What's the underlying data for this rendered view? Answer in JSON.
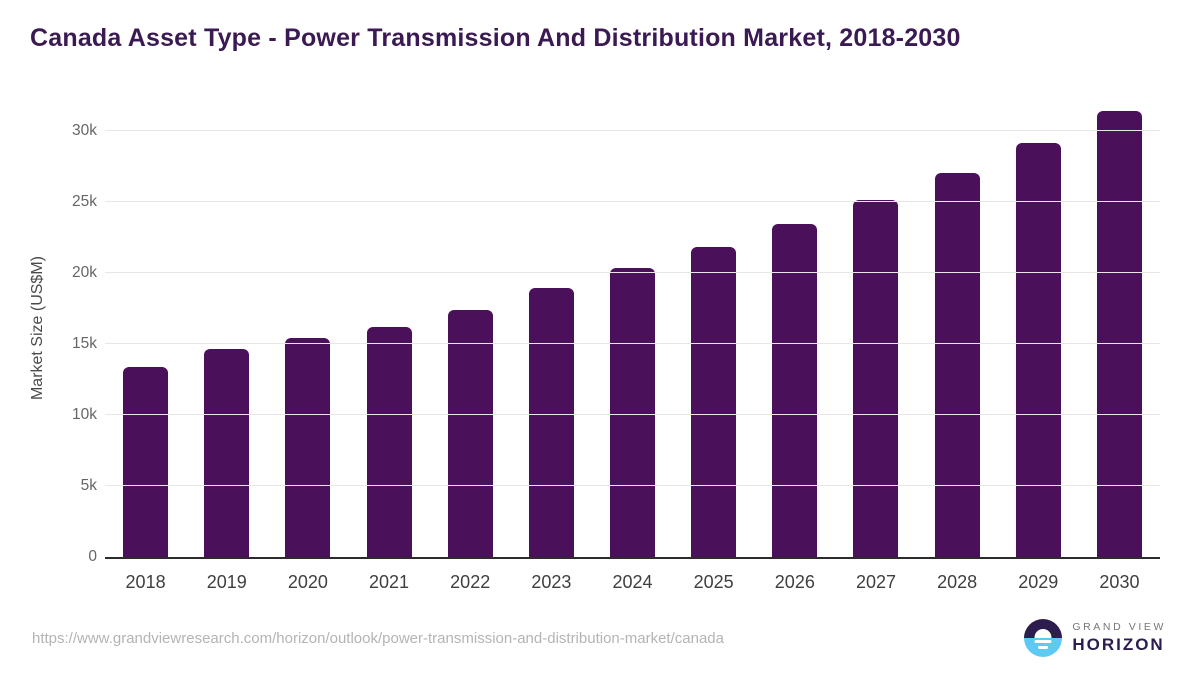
{
  "header": {
    "title": "Canada Asset Type - Power Transmission And Distribution Market, 2018-2030"
  },
  "chart_data": {
    "type": "bar",
    "title": "Canada Asset Type - Power Transmission And Distribution Market, 2018-2030",
    "categories": [
      "2018",
      "2019",
      "2020",
      "2021",
      "2022",
      "2023",
      "2024",
      "2025",
      "2026",
      "2027",
      "2028",
      "2029",
      "2030"
    ],
    "values": [
      13400,
      14600,
      15400,
      16200,
      17400,
      18900,
      20300,
      21800,
      23400,
      25100,
      27000,
      29100,
      31400
    ],
    "xlabel": "",
    "ylabel": "Market Size (US$M)",
    "ylim": [
      0,
      32150
    ],
    "yticks": [
      {
        "value": 0,
        "label": "0"
      },
      {
        "value": 5000,
        "label": "5k"
      },
      {
        "value": 10000,
        "label": "10k"
      },
      {
        "value": 15000,
        "label": "15k"
      },
      {
        "value": 20000,
        "label": "20k"
      },
      {
        "value": 25000,
        "label": "25k"
      },
      {
        "value": 30000,
        "label": "30k"
      }
    ],
    "grid": "horizontal",
    "legend": "none",
    "bar_color": "#4a105a"
  },
  "colors": {
    "title": "#3b1a54",
    "bar": "#4a105a",
    "gridline": "#e7e7e7",
    "axis_line": "#2b2b2b",
    "y_tick_text": "#666666",
    "x_tick_text": "#3f3f3f",
    "y_axis_title_text": "#4a4a4a",
    "url_text": "#b4b4b4",
    "logo_dark": "#2d1d4e",
    "logo_blue": "#5ec9f2",
    "logo_gray_text": "#76777a"
  },
  "footer": {
    "source_url": "https://www.grandviewresearch.com/horizon/outlook/power-transmission-and-distribution-market/canada",
    "logo": {
      "line1": "GRAND VIEW",
      "line2": "HORIZON"
    }
  }
}
